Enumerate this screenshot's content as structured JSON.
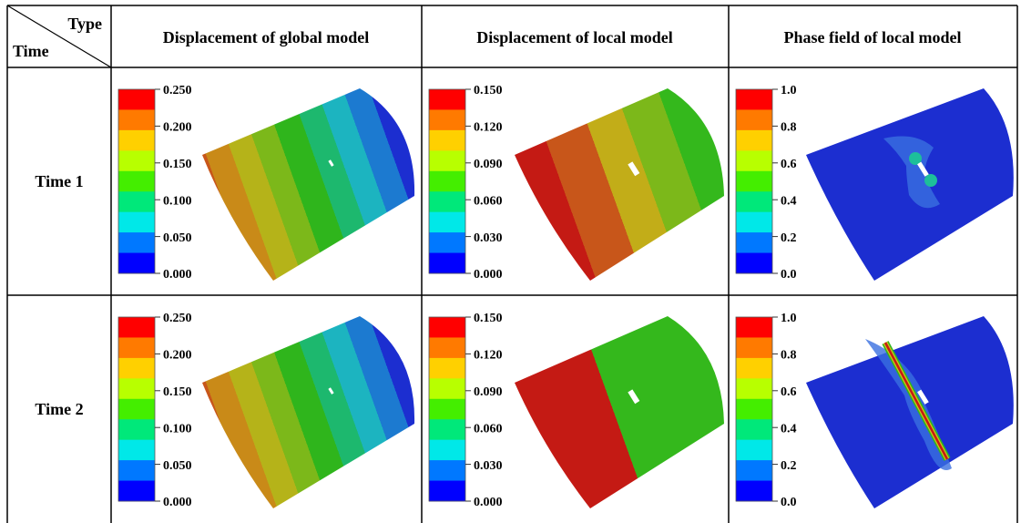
{
  "header": {
    "corner": {
      "type": "Type",
      "time": "Time"
    },
    "columns": [
      "Displacement of global model",
      "Displacement of local model",
      "Phase field of local model"
    ]
  },
  "rows": [
    {
      "label": "Time 1",
      "cells": [
        {
          "scale": [
            "0.250",
            "0.200",
            "0.150",
            "0.100",
            "0.050",
            "0.000"
          ]
        },
        {
          "scale": [
            "0.150",
            "0.120",
            "0.090",
            "0.060",
            "0.030",
            "0.000"
          ]
        },
        {
          "scale": [
            "1.0",
            "0.8",
            "0.6",
            "0.4",
            "0.2",
            "0.0"
          ]
        }
      ]
    },
    {
      "label": "Time 2",
      "cells": [
        {
          "scale": [
            "0.250",
            "0.200",
            "0.150",
            "0.100",
            "0.050",
            "0.000"
          ]
        },
        {
          "scale": [
            "0.150",
            "0.120",
            "0.090",
            "0.060",
            "0.030",
            "0.000"
          ]
        },
        {
          "scale": [
            "1.0",
            "0.8",
            "0.6",
            "0.4",
            "0.2",
            "0.0"
          ]
        }
      ]
    }
  ]
}
